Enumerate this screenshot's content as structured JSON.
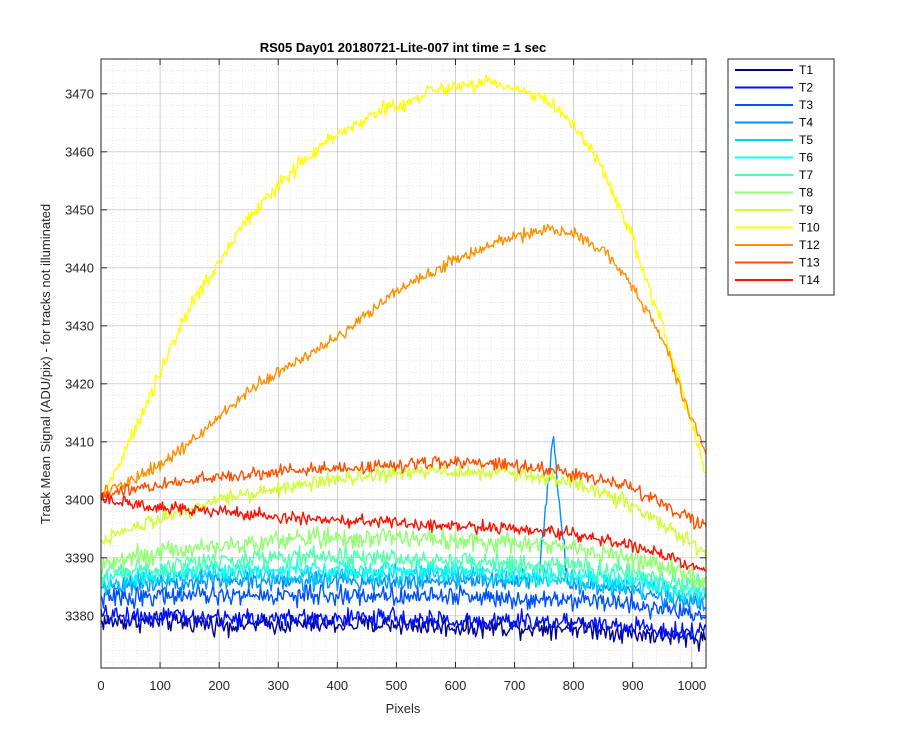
{
  "chart_data": {
    "type": "line",
    "title": "RS05 Day01 20180721-Lite-007 int time = 1 sec",
    "xlabel": "Pixels",
    "ylabel": "Track Mean Signal (ADU/pix) - for tracks not illuminated",
    "xlim": [
      0,
      1024
    ],
    "ylim": [
      3371,
      3476
    ],
    "xticks": [
      0,
      100,
      200,
      300,
      400,
      500,
      600,
      700,
      800,
      900,
      1000
    ],
    "yticks": [
      3380,
      3390,
      3400,
      3410,
      3420,
      3430,
      3440,
      3450,
      3460,
      3470
    ],
    "grid": true,
    "minor_grid": true,
    "legend_position": "outside-right",
    "series": [
      {
        "name": "T1",
        "color": "#00008f",
        "x": [
          0,
          100,
          200,
          300,
          400,
          500,
          600,
          700,
          800,
          900,
          1024
        ],
        "y": [
          3379,
          3379,
          3378.5,
          3378.5,
          3378.5,
          3378.5,
          3378,
          3378,
          3378,
          3377,
          3376
        ],
        "noise": 2.5
      },
      {
        "name": "T2",
        "color": "#0010ff",
        "x": [
          0,
          100,
          200,
          300,
          400,
          500,
          600,
          700,
          800,
          900,
          1024
        ],
        "y": [
          3380,
          3380,
          3379.5,
          3379.5,
          3379.5,
          3379.5,
          3379,
          3379,
          3379,
          3378,
          3377
        ],
        "noise": 2.5
      },
      {
        "name": "T3",
        "color": "#0050ff",
        "x": [
          0,
          100,
          200,
          300,
          400,
          500,
          600,
          700,
          800,
          900,
          1024
        ],
        "y": [
          3383,
          3383.5,
          3383.5,
          3383.5,
          3383.5,
          3383.5,
          3383.5,
          3383,
          3383,
          3382,
          3380
        ],
        "noise": 2.5
      },
      {
        "name": "T4",
        "color": "#0090ff",
        "x": [
          0,
          100,
          200,
          300,
          400,
          500,
          600,
          700,
          740,
          755,
          765,
          775,
          790,
          800,
          900,
          1024
        ],
        "y": [
          3385,
          3386,
          3386,
          3386,
          3386,
          3386,
          3386,
          3386,
          3386,
          3400,
          3412,
          3400,
          3386,
          3385.5,
          3384,
          3382
        ],
        "noise": 2.5
      },
      {
        "name": "T5",
        "color": "#00d0ff",
        "x": [
          0,
          100,
          200,
          300,
          400,
          500,
          600,
          700,
          800,
          900,
          1024
        ],
        "y": [
          3385,
          3386.5,
          3387,
          3387,
          3387,
          3387,
          3387,
          3386.5,
          3386,
          3385,
          3383
        ],
        "noise": 2.5
      },
      {
        "name": "T6",
        "color": "#10ffef",
        "x": [
          0,
          100,
          200,
          300,
          400,
          500,
          600,
          700,
          800,
          900,
          1024
        ],
        "y": [
          3386,
          3387.5,
          3388,
          3388,
          3388,
          3388,
          3388,
          3387.5,
          3387,
          3386,
          3384
        ],
        "noise": 2.5
      },
      {
        "name": "T7",
        "color": "#50ffaf",
        "x": [
          0,
          100,
          200,
          300,
          400,
          500,
          600,
          700,
          800,
          900,
          1024
        ],
        "y": [
          3387,
          3388.5,
          3389.5,
          3390,
          3390,
          3390,
          3389.5,
          3389,
          3388.5,
          3387.5,
          3385
        ],
        "noise": 2.5
      },
      {
        "name": "T8",
        "color": "#90ff70",
        "x": [
          0,
          100,
          200,
          300,
          400,
          500,
          600,
          700,
          800,
          900,
          1024
        ],
        "y": [
          3389,
          3391,
          3392,
          3393,
          3393.5,
          3393.5,
          3393,
          3392.5,
          3392,
          3390,
          3386
        ],
        "noise": 2.5
      },
      {
        "name": "T9",
        "color": "#cfff30",
        "x": [
          0,
          100,
          200,
          300,
          400,
          500,
          600,
          700,
          800,
          900,
          1024
        ],
        "y": [
          3393,
          3397,
          3400,
          3402,
          3403.5,
          3404.5,
          3405,
          3404.5,
          3403,
          3399,
          3391
        ],
        "noise": 2
      },
      {
        "name": "T10",
        "color": "#ffff00",
        "x": [
          0,
          50,
          100,
          150,
          200,
          250,
          300,
          350,
          400,
          450,
          500,
          550,
          600,
          650,
          700,
          750,
          800,
          850,
          900,
          950,
          1000,
          1024
        ],
        "y": [
          3400,
          3410,
          3422,
          3433,
          3441,
          3449,
          3454,
          3459,
          3463,
          3466,
          3468,
          3470,
          3471.5,
          3472,
          3471,
          3469,
          3465,
          3457,
          3445,
          3430,
          3413,
          3404
        ],
        "noise": 2
      },
      {
        "name": "T12",
        "color": "#ff9000",
        "x": [
          0,
          50,
          100,
          150,
          200,
          250,
          300,
          350,
          400,
          450,
          500,
          550,
          600,
          650,
          700,
          750,
          800,
          850,
          900,
          950,
          1000,
          1024
        ],
        "y": [
          3401,
          3403,
          3406,
          3410,
          3414,
          3419,
          3422,
          3425,
          3428,
          3432,
          3436,
          3439,
          3441.5,
          3443.5,
          3445.5,
          3446.5,
          3446,
          3443,
          3437,
          3428,
          3414,
          3408
        ],
        "noise": 1.6
      },
      {
        "name": "T13",
        "color": "#ff5000",
        "x": [
          0,
          100,
          200,
          300,
          400,
          500,
          600,
          700,
          800,
          900,
          1024
        ],
        "y": [
          3401,
          3402.5,
          3404,
          3405,
          3405.5,
          3406,
          3406.5,
          3406,
          3404.5,
          3402,
          3395
        ],
        "noise": 1.6
      },
      {
        "name": "T14",
        "color": "#ff1000",
        "x": [
          0,
          100,
          200,
          300,
          400,
          500,
          600,
          700,
          800,
          900,
          1024
        ],
        "y": [
          3400,
          3398.5,
          3398,
          3397,
          3396.5,
          3396,
          3395.5,
          3395,
          3394,
          3392,
          3388
        ],
        "noise": 1.6
      }
    ]
  }
}
